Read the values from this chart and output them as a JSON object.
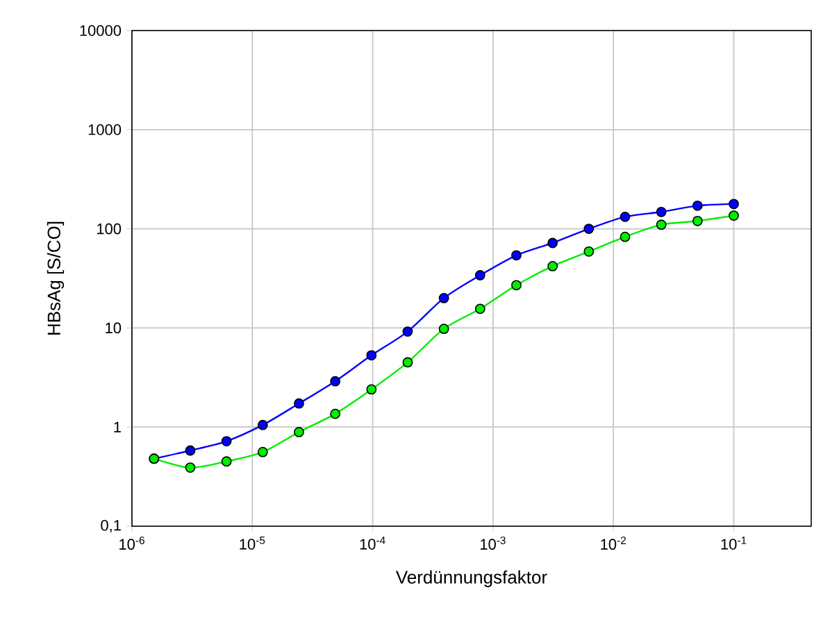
{
  "chart_data": {
    "type": "line",
    "xlabel": "Verdünnungsfaktor",
    "ylabel": "HBsAg [S/CO]",
    "log": "xy",
    "grid": true,
    "marker": "circle",
    "line_style": "solid",
    "xlim": [
      1e-06,
      0.44
    ],
    "ylim": [
      0.1,
      10000
    ],
    "xticks": [
      {
        "value": 1e-06,
        "label": "10$^{-6}$"
      },
      {
        "value": 1e-05,
        "label": "10$^{-5}$"
      },
      {
        "value": 0.0001,
        "label": "10$^{-4}$"
      },
      {
        "value": 0.001,
        "label": "10$^{-3}$"
      },
      {
        "value": 0.01,
        "label": "10$^{-2}$"
      },
      {
        "value": 0.1,
        "label": "10$^{-1}$"
      }
    ],
    "yticks": [
      {
        "value": 0.1,
        "label": "0,1"
      },
      1,
      10,
      100,
      1000,
      10000
    ],
    "x": [
      1.526e-06,
      3.052e-06,
      6.104e-06,
      1.221e-05,
      2.441e-05,
      4.883e-05,
      9.766e-05,
      0.0001953,
      0.0003906,
      0.0007813,
      0.001563,
      0.003125,
      0.00625,
      0.0125,
      0.025,
      0.05,
      0.1
    ],
    "series": [
      {
        "color": "#0000ff",
        "values": [
          0.48,
          0.58,
          0.72,
          1.05,
          1.73,
          2.9,
          5.3,
          9.2,
          20,
          34,
          54,
          72,
          100,
          132,
          148,
          171,
          178
        ]
      },
      {
        "color": "#00ee00",
        "values": [
          0.48,
          0.39,
          0.45,
          0.56,
          0.89,
          1.36,
          2.4,
          4.5,
          9.8,
          15.6,
          27,
          42,
          59,
          83,
          110,
          120,
          136
        ]
      }
    ]
  }
}
